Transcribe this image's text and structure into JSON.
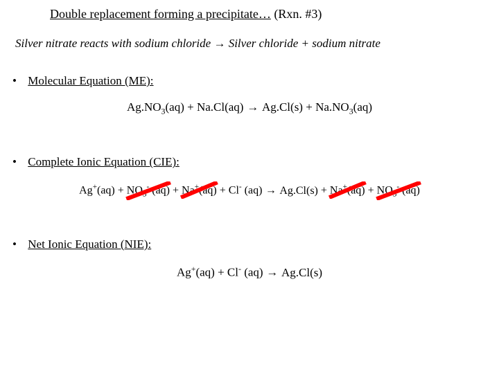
{
  "title": {
    "underlined": "Double replacement forming a precipitate…",
    "suffix": " (Rxn. #3)",
    "fontsize": 18
  },
  "colors": {
    "text": "#000000",
    "background": "#ffffff",
    "strike": "#ff0000"
  },
  "word_equation": {
    "left": "Silver nitrate  reacts with sodium chloride  ",
    "arrow": "→",
    "right": "    Silver chloride  + sodium nitrate"
  },
  "sections": {
    "me": {
      "bullet": "•",
      "label": "Molecular Equation (ME):"
    },
    "cie": {
      "bullet": "•",
      "label": "Complete Ionic Equation (CIE):"
    },
    "nie": {
      "bullet": "•",
      "label": "Net Ionic Equation (NIE):"
    }
  },
  "equations": {
    "me": {
      "t1": "Ag.NO",
      "t1_sub": "3",
      "t1_state": "(aq)",
      "plus1": "  +  ",
      "t2": "Na.Cl(aq)",
      "arrow": "  →  ",
      "t3": "Ag.Cl(s)",
      "plus2": "  +  ",
      "t4": "Na.NO",
      "t4_sub": "3",
      "t4_state": "(aq)"
    },
    "cie": {
      "a": {
        "base": "Ag",
        "sup": "+",
        "state": "(aq)",
        "struck": false
      },
      "plus1": " + ",
      "b": {
        "base": "NO",
        "sub": "3",
        "sup": "-",
        "state": " (aq)",
        "struck": true
      },
      "plus2": " + ",
      "c": {
        "base": "Na",
        "sup": "+",
        "state": "(aq)",
        "struck": true
      },
      "plus3": " + ",
      "d": {
        "base": "Cl",
        "sup": "-",
        "state": " (aq)",
        "struck": false
      },
      "arrow": "  →  ",
      "e": {
        "base": "Ag.Cl(s)",
        "struck": false
      },
      "plus4": " + ",
      "f": {
        "base": "Na",
        "sup": "+",
        "state": "(aq)",
        "struck": true
      },
      "plus5": " + ",
      "g": {
        "base": "NO",
        "sub": "3",
        "sup": "-",
        "state": " (aq)",
        "struck": true
      }
    },
    "nie": {
      "a": {
        "base": "Ag",
        "sup": "+",
        "state": "(aq)"
      },
      "plus1": "  + ",
      "b": {
        "base": "Cl",
        "sup": "-",
        "state": " (aq)"
      },
      "arrow": "   →  ",
      "c": {
        "base": "Ag.Cl(s)"
      }
    }
  },
  "strike_style": {
    "color": "#ff0000",
    "width": 2
  }
}
